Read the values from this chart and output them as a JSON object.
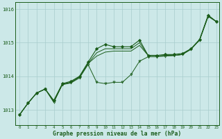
{
  "title": "Graphe pression niveau de la mer (hPa)",
  "bg_color": "#cce8e8",
  "grid_color": "#a8cccc",
  "line_color": "#1a5c1a",
  "xlim": [
    -0.5,
    23.3
  ],
  "ylim": [
    1012.55,
    1016.2
  ],
  "yticks": [
    1013,
    1014,
    1015,
    1016
  ],
  "xticks": [
    0,
    1,
    2,
    3,
    4,
    5,
    6,
    7,
    8,
    9,
    10,
    11,
    12,
    13,
    14,
    15,
    16,
    17,
    18,
    19,
    20,
    21,
    22,
    23
  ],
  "series_diamond": [
    1012.85,
    1013.2,
    1013.5,
    1013.62,
    1013.28,
    1013.78,
    1013.85,
    1014.0,
    1014.42,
    1014.82,
    1014.95,
    1014.88,
    1014.88,
    1014.88,
    1015.08,
    1014.62,
    1014.62,
    1014.65,
    1014.65,
    1014.68,
    1014.82,
    1015.1,
    1015.82,
    1015.62
  ],
  "series_triangle": [
    1012.85,
    1013.2,
    1013.5,
    1013.62,
    1013.22,
    1013.75,
    1013.8,
    1013.95,
    1014.35,
    1013.82,
    1013.78,
    1013.82,
    1013.82,
    1014.05,
    1014.45,
    1014.58,
    1014.58,
    1014.6,
    1014.62,
    1014.65,
    1014.8,
    1015.08,
    1015.78,
    1015.62
  ],
  "series_plain1": [
    1012.85,
    1013.2,
    1013.5,
    1013.62,
    1013.25,
    1013.76,
    1013.82,
    1013.98,
    1014.38,
    1014.6,
    1014.72,
    1014.75,
    1014.75,
    1014.75,
    1014.92,
    1014.62,
    1014.62,
    1014.62,
    1014.62,
    1014.65,
    1014.82,
    1015.08,
    1015.8,
    1015.62
  ],
  "series_plain2": [
    1012.85,
    1013.2,
    1013.5,
    1013.62,
    1013.25,
    1013.76,
    1013.82,
    1013.98,
    1014.38,
    1014.7,
    1014.82,
    1014.82,
    1014.82,
    1014.82,
    1015.0,
    1014.62,
    1014.62,
    1014.62,
    1014.62,
    1014.65,
    1014.82,
    1015.08,
    1015.8,
    1015.62
  ]
}
